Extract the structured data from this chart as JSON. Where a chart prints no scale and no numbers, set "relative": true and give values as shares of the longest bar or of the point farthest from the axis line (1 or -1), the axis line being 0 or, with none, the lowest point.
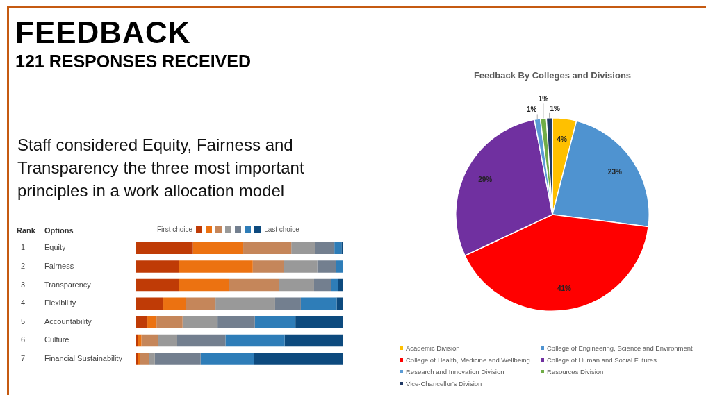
{
  "chart_data": [
    {
      "type": "bar",
      "title": "FEEDBACK",
      "subtitle": "121 RESPONSES RECEIVED",
      "orientation": "horizontal",
      "stacked": true,
      "relative": true,
      "legend": "top",
      "ylabel": "Options",
      "annotations": [
        "Staff considered Equity, Fairness and Transparency the three most important principles in a work allocation model",
        "Rank",
        "1",
        "2",
        "3",
        "4",
        "5",
        "6",
        "7"
      ],
      "categories": [
        "Equity",
        "Fairness",
        "Transparency",
        "Flexibility",
        "Accountability",
        "Culture",
        "Financial Sustainability"
      ],
      "series": [
        {
          "name": "First choice",
          "color": "#bf3b06",
          "values": [
            0.274,
            0.206,
            0.206,
            0.131,
            0.054,
            0.008,
            0.008
          ]
        },
        {
          "color": "#ec7211",
          "values": [
            0.243,
            0.357,
            0.242,
            0.11,
            0.044,
            0.017,
            0.011
          ]
        },
        {
          "color": "#c5865a",
          "values": [
            0.232,
            0.151,
            0.241,
            0.142,
            0.126,
            0.081,
            0.044
          ]
        },
        {
          "color": "#999999",
          "values": [
            0.116,
            0.16,
            0.17,
            0.288,
            0.169,
            0.092,
            0.027
          ]
        },
        {
          "color": "#737f8f",
          "values": [
            0.092,
            0.091,
            0.081,
            0.124,
            0.18,
            0.233,
            0.221
          ]
        },
        {
          "color": "#2e7db8",
          "values": [
            0.034,
            0.035,
            0.035,
            0.173,
            0.196,
            0.286,
            0.258
          ]
        },
        {
          "name": "Last choice",
          "color": "#0d4a7e",
          "values": [
            0.009,
            0,
            0.025,
            0.032,
            0.231,
            0.283,
            0.431
          ]
        }
      ]
    },
    {
      "type": "pie",
      "title": "Feedback By Colleges and Divisions",
      "legend": "bottom",
      "categories": [
        "Academic Division",
        "College of Engineering, Science and Environment",
        "College of Health, Medicine and Wellbeing",
        "College of Human and Social Futures",
        "Research and Innovation Division",
        "Resources Division",
        "Vice-Chancellor's Division"
      ],
      "values": [
        4,
        23,
        41,
        29,
        1,
        1,
        1
      ],
      "value_labels": [
        "4%",
        "23%",
        "41%",
        "29%",
        "1%",
        "1%",
        "1%"
      ],
      "colors": [
        "#ffc000",
        "#4f93d0",
        "#ff0000",
        "#7030a0",
        "#5b9bd5",
        "#70ad47",
        "#1f3864"
      ]
    }
  ]
}
